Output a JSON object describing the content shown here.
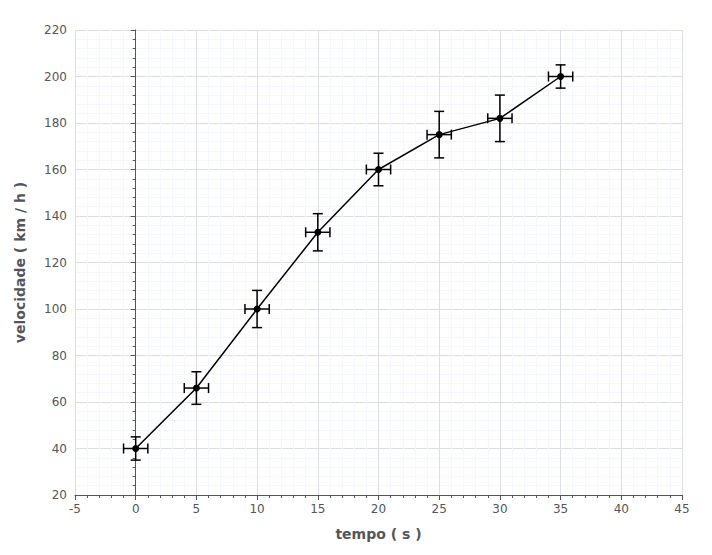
{
  "chart_data": {
    "type": "line",
    "x": [
      0,
      5,
      10,
      15,
      20,
      25,
      30,
      35
    ],
    "values": [
      40,
      66,
      100,
      133,
      160,
      175,
      182,
      200
    ],
    "xerr": [
      1,
      1,
      1,
      1,
      1,
      1,
      1,
      1
    ],
    "yerr": [
      5,
      7,
      8,
      8,
      7,
      10,
      10,
      5
    ],
    "xlabel": "tempo ( s )",
    "ylabel": "velocidade ( km / h )",
    "xlim": [
      -5,
      45
    ],
    "ylim": [
      20,
      220
    ],
    "xticks": [
      -5,
      0,
      5,
      10,
      15,
      20,
      25,
      30,
      35,
      40,
      45
    ],
    "yticks": [
      20,
      40,
      60,
      80,
      100,
      120,
      140,
      160,
      180,
      200,
      220
    ],
    "grid": true,
    "color": "#000000",
    "marker": "circle"
  }
}
